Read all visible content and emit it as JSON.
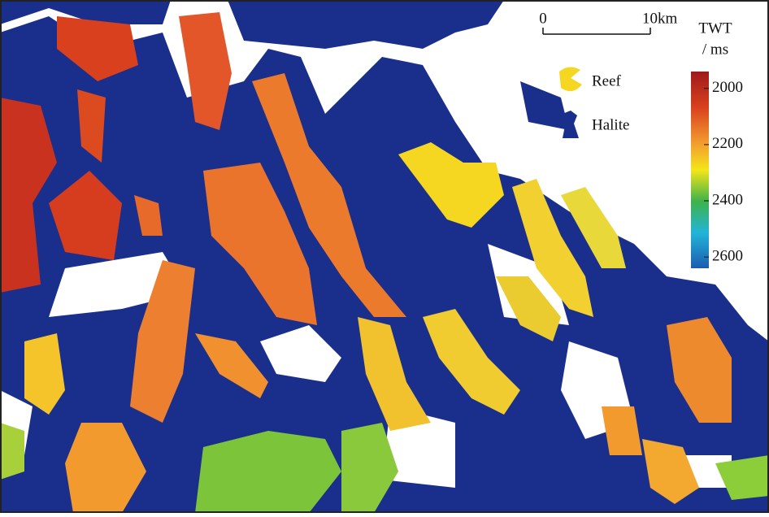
{
  "scale_bar": {
    "labels": [
      "0",
      "10km"
    ]
  },
  "legend": {
    "items": [
      "Reef",
      "Halite"
    ]
  },
  "colorbar": {
    "title": [
      "TWT",
      "/ ms"
    ],
    "lim": [
      1940,
      2640
    ],
    "ticks": [
      2000,
      2200,
      2400,
      2600
    ]
  }
}
